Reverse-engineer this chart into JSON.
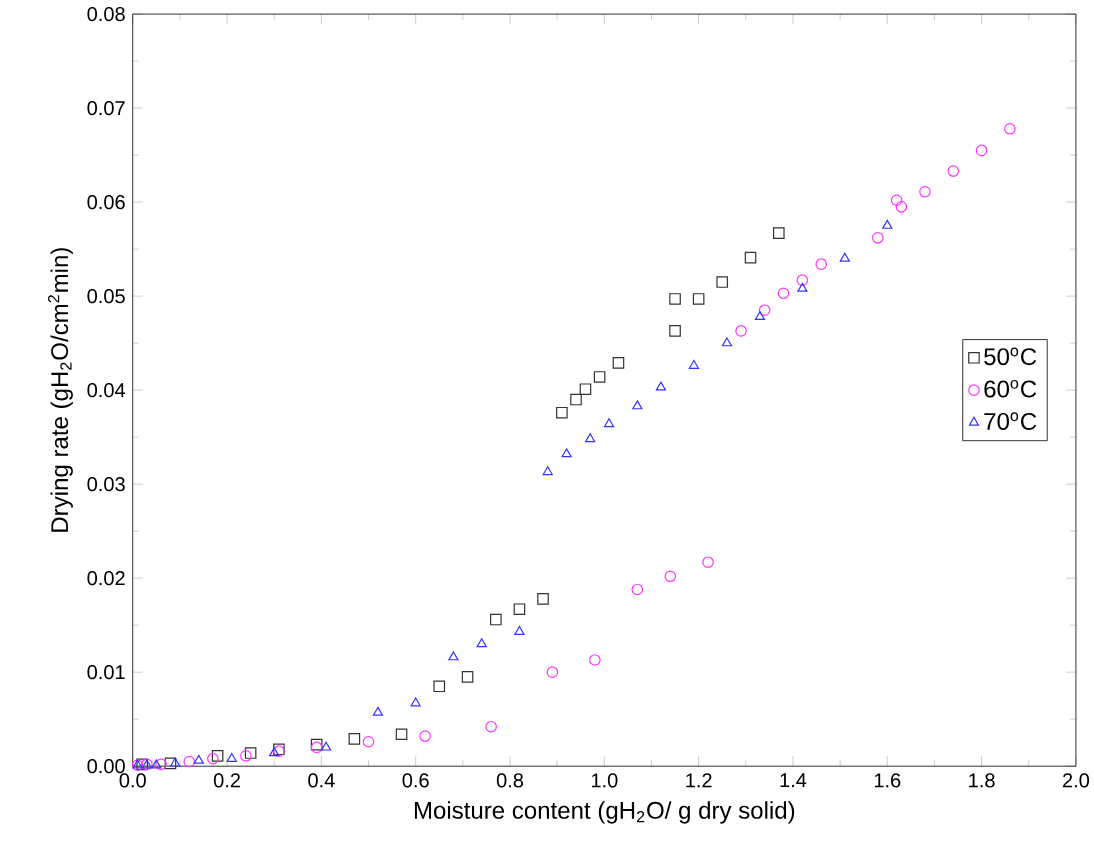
{
  "chart_data": {
    "type": "scatter",
    "xlabel": "Moisture content (gH$_{2}$O/ g dry solid)",
    "ylabel": "Drying rate (gH$_{2}$O/cm$^{2}$min)",
    "xlim": [
      0,
      2.0
    ],
    "ylim": [
      0,
      0.08
    ],
    "xticks": [
      {
        "value": 0,
        "label": "0.0"
      },
      0.2,
      0.4,
      0.6,
      0.8,
      {
        "value": 1,
        "label": "1.0"
      },
      1.2,
      1.4,
      1.6,
      1.8,
      {
        "value": 2,
        "label": "2.0"
      }
    ],
    "yticks": [
      {
        "value": 0,
        "label": "0.00"
      },
      0.01,
      0.02,
      0.03,
      0.04,
      0.05,
      0.06,
      0.07,
      0.08
    ],
    "legend": "right",
    "grid": false,
    "series": [
      {
        "name": "50$^{o}$C",
        "color": "#333333",
        "marker": "square",
        "x": [
          0.02,
          0.08,
          0.18,
          0.25,
          0.31,
          0.39,
          0.47,
          0.57,
          0.65,
          0.71,
          0.77,
          0.82,
          0.87,
          0.91,
          0.94,
          0.96,
          0.99,
          1.03,
          1.15,
          1.15,
          1.2,
          1.25,
          1.31,
          1.37
        ],
        "values": [
          0.0002,
          0.0003,
          0.0011,
          0.0014,
          0.0018,
          0.0023,
          0.0029,
          0.0034,
          0.0085,
          0.0095,
          0.0156,
          0.0167,
          0.0178,
          0.0376,
          0.039,
          0.0401,
          0.0414,
          0.0429,
          0.0463,
          0.0497,
          0.0497,
          0.0515,
          0.0541,
          0.0567
        ]
      },
      {
        "name": "60$^{o}$C",
        "color": "#ff33ff",
        "marker": "circle",
        "x": [
          0.01,
          0.03,
          0.06,
          0.12,
          0.17,
          0.24,
          0.31,
          0.39,
          0.5,
          0.62,
          0.76,
          0.89,
          0.98,
          1.07,
          1.14,
          1.22,
          1.29,
          1.34,
          1.38,
          1.42,
          1.46,
          1.58,
          1.62,
          1.63,
          1.68,
          1.74,
          1.8,
          1.86
        ],
        "values": [
          0.0001,
          0.0002,
          0.0002,
          0.0005,
          0.0008,
          0.0011,
          0.0016,
          0.002,
          0.0026,
          0.0032,
          0.0042,
          0.01,
          0.0113,
          0.0188,
          0.0202,
          0.0217,
          0.0463,
          0.0485,
          0.0503,
          0.0517,
          0.0534,
          0.0562,
          0.0602,
          0.0595,
          0.0611,
          0.0633,
          0.0655,
          0.0678
        ]
      },
      {
        "name": "70$^{o}$C",
        "color": "#3333ff",
        "marker": "triangle",
        "x": [
          0.01,
          0.03,
          0.05,
          0.09,
          0.14,
          0.21,
          0.3,
          0.41,
          0.52,
          0.6,
          0.68,
          0.74,
          0.82,
          0.88,
          0.92,
          0.97,
          1.01,
          1.07,
          1.12,
          1.19,
          1.26,
          1.33,
          1.42,
          1.51,
          1.6
        ],
        "values": [
          0.0001,
          0.0001,
          0.0001,
          0.0003,
          0.0006,
          0.0008,
          0.0014,
          0.002,
          0.0057,
          0.0067,
          0.0116,
          0.013,
          0.0143,
          0.0313,
          0.0332,
          0.0348,
          0.0364,
          0.0383,
          0.0403,
          0.0426,
          0.045,
          0.0478,
          0.0508,
          0.054,
          0.0575
        ]
      }
    ]
  }
}
